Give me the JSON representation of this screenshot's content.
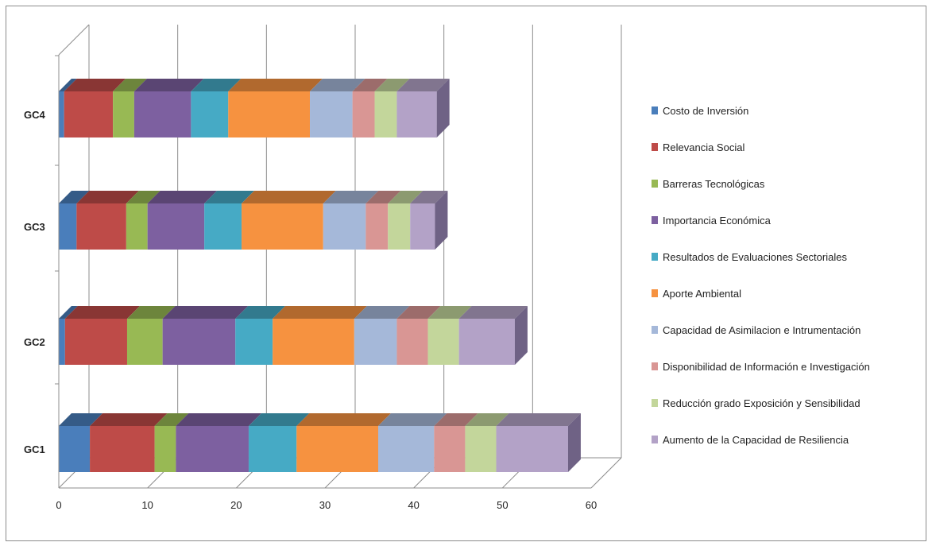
{
  "chart_data": {
    "type": "bar",
    "orientation": "horizontal",
    "stacked": true,
    "style_3d": true,
    "categories": [
      "GC1",
      "GC2",
      "GC3",
      "GC4"
    ],
    "xlim": [
      0,
      60
    ],
    "x_ticks": [
      0,
      10,
      20,
      30,
      40,
      50,
      60
    ],
    "grid": true,
    "legend_position": "right",
    "series": [
      {
        "name": "Costo de Inversión",
        "color": "#4a7ebb",
        "values": [
          3.5,
          0.7,
          2.0,
          0.6
        ]
      },
      {
        "name": "Relevancia Social",
        "color": "#be4b48",
        "values": [
          7.3,
          7.0,
          5.6,
          5.5
        ]
      },
      {
        "name": "Barreras Tecnológicas",
        "color": "#98b954",
        "values": [
          2.4,
          4.0,
          2.4,
          2.4
        ]
      },
      {
        "name": "Importancia Económica",
        "color": "#7d60a0",
        "values": [
          8.2,
          8.2,
          6.4,
          6.4
        ]
      },
      {
        "name": "Resultados de Evaluaciones Sectoriales",
        "color": "#46aac5",
        "values": [
          5.4,
          4.2,
          4.2,
          4.2
        ]
      },
      {
        "name": "Aporte Ambiental",
        "color": "#f69240",
        "values": [
          9.2,
          9.2,
          9.2,
          9.2
        ]
      },
      {
        "name": "Capacidad de Asimilacion e Intrumentación",
        "color": "#a5b8d9",
        "values": [
          6.3,
          4.8,
          4.8,
          4.8
        ]
      },
      {
        "name": "Disponibilidad de Información e Investigación",
        "color": "#d99694",
        "values": [
          3.5,
          3.5,
          2.5,
          2.5
        ]
      },
      {
        "name": "Reducción grado Exposición y Sensibilidad",
        "color": "#c3d69b",
        "values": [
          3.5,
          3.5,
          2.5,
          2.5
        ]
      },
      {
        "name": "Aumento de la Capacidad de Resiliencia",
        "color": "#b3a2c7",
        "values": [
          8.1,
          6.3,
          2.8,
          4.5
        ]
      }
    ]
  }
}
